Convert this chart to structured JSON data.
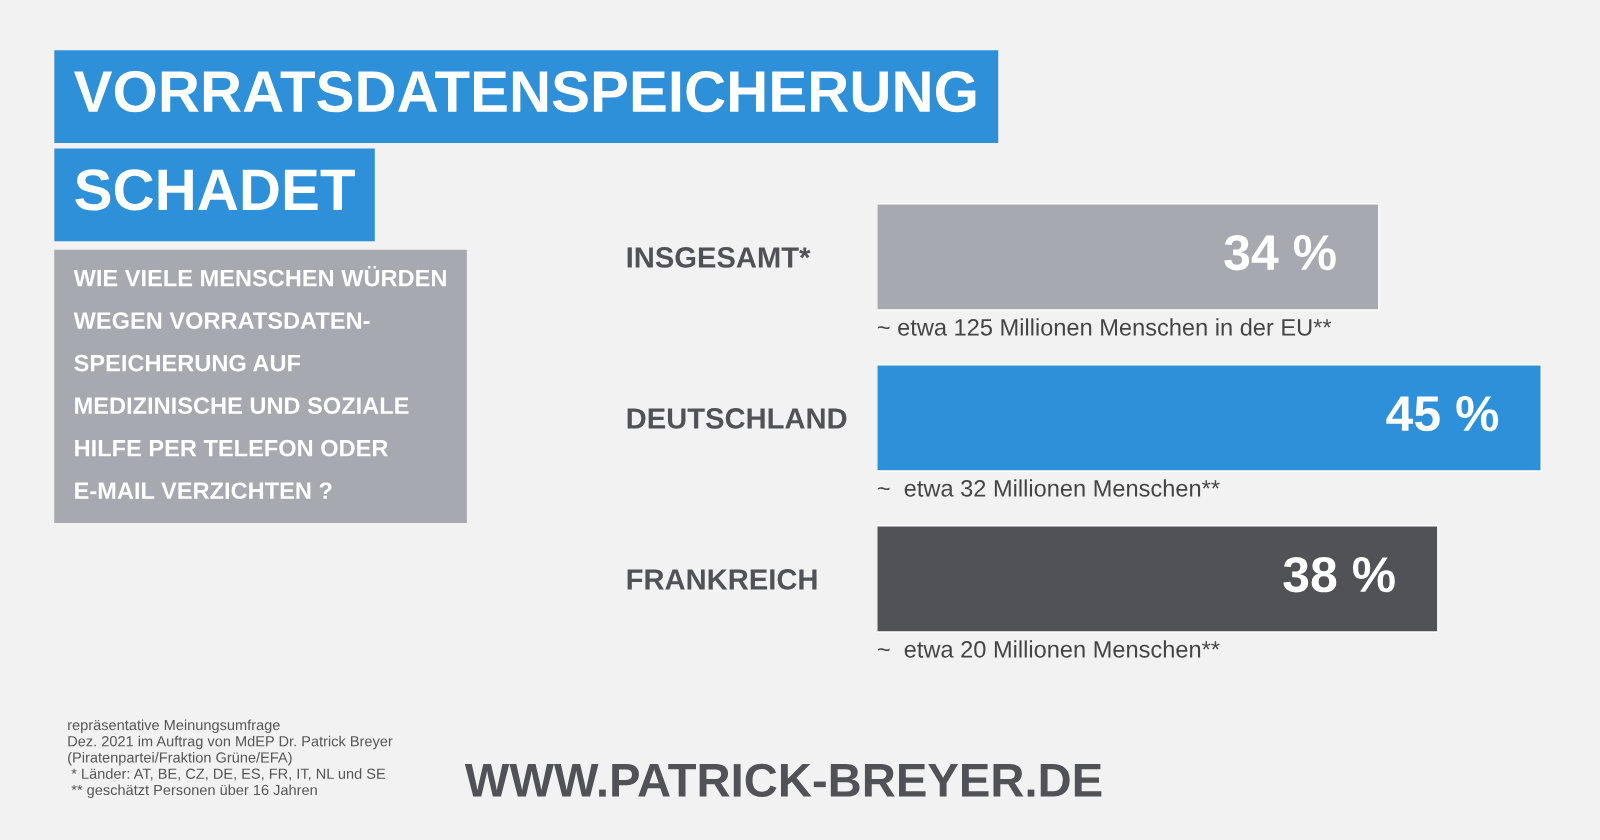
{
  "chart_data": {
    "type": "bar",
    "orientation": "horizontal",
    "title": "VORRATSDATENSPEICHERUNG\nSCHADET",
    "subtitle": "WIE VIELE MENSCHEN WÜRDEN\nWEGEN VORRATSDATEN-\nSPEICHERUNG AUF\nMEDIZINISCHE UND SOZIALE\nHILFE PER TELEFON ODER\nE-MAIL VERZICHTEN ?",
    "categories": [
      "INSGESAMT*",
      "DEUTSCHLAND",
      "FRANKREICH"
    ],
    "values": [
      34,
      45,
      38
    ],
    "colors": [
      "#a6a9b0",
      "#2e90d8",
      "#515257"
    ],
    "value_labels": [
      "34 %",
      "45 %",
      "38 %"
    ],
    "tick_labels": "y",
    "annotations": [
      "~ etwa 125 Millionen Menschen in der EU**",
      "~  etwa 32 Millionen Menschen**",
      "~  etwa 20 Millionen Menschen**",
      "repräsentative Meinungsumfrage\nDez. 2021 im Auftrag von MdEP Dr. Patrick Breyer\n(Piratenpartei/Fraktion Grüne/EFA)\n * Länder: AT, BE, CZ, DE, ES, FR, IT, NL und SE\n ** geschätzt Personen über 16 Jahren",
      "WWW.PATRICK-BREYER.DE"
    ]
  }
}
